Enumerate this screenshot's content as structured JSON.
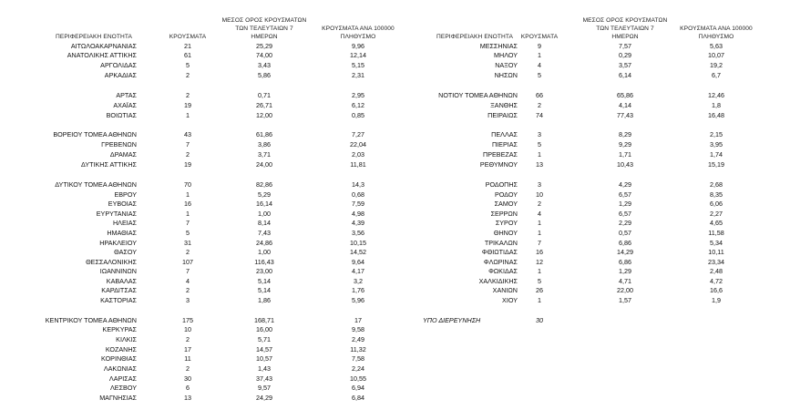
{
  "headers": {
    "region": "ΠΕΡΙΦΕΡΕΙΑΚΗ ΕΝΟΤΗΤΑ",
    "cases": "ΚΡΟΥΣΜΑΤΑ",
    "avg_l1": "ΜΕΣΟΣ ΟΡΟΣ ΚΡΟΥΣΜΑΤΩΝ",
    "avg_l2": "ΤΩΝ ΤΕΛΕΥΤΑΙΩΝ 7",
    "avg_l3": "ΗΜΕΡΩΝ",
    "per_l1": "ΚΡΟΥΣΜΑΤΑ ΑΝΑ 100000",
    "per_l2": "ΠΛΗΘΥΣΜΟ"
  },
  "left_rows": [
    {
      "name": "ΑΙΤΩΛΟΑΚΑΡΝΑΝΙΑΣ",
      "cases": "21",
      "avg": "25,29",
      "per": "9,96"
    },
    {
      "name": "ΑΝΑΤΟΛΙΚΗΣ ΑΤΤΙΚΗΣ",
      "cases": "61",
      "avg": "74,00",
      "per": "12,14"
    },
    {
      "name": "ΑΡΓΟΛΙΔΑΣ",
      "cases": "5",
      "avg": "3,43",
      "per": "5,15"
    },
    {
      "name": "ΑΡΚΑΔΙΑΣ",
      "cases": "2",
      "avg": "5,86",
      "per": "2,31"
    },
    {
      "name": "ΑΡΤΑΣ",
      "cases": "2",
      "avg": "0,71",
      "per": "2,95"
    },
    {
      "name": "ΑΧΑΪΑΣ",
      "cases": "19",
      "avg": "26,71",
      "per": "6,12"
    },
    {
      "name": "ΒΟΙΩΤΙΑΣ",
      "cases": "1",
      "avg": "12,00",
      "per": "0,85"
    },
    {
      "name": "ΒΟΡΕΙΟΥ ΤΟΜΕΑ ΑΘΗΝΩΝ",
      "cases": "43",
      "avg": "61,86",
      "per": "7,27"
    },
    {
      "name": "ΓΡΕΒΕΝΩΝ",
      "cases": "7",
      "avg": "3,86",
      "per": "22,04"
    },
    {
      "name": "ΔΡΑΜΑΣ",
      "cases": "2",
      "avg": "3,71",
      "per": "2,03"
    },
    {
      "name": "ΔΥΤΙΚΗΣ ΑΤΤΙΚΗΣ",
      "cases": "19",
      "avg": "24,00",
      "per": "11,81"
    },
    {
      "name": "ΔΥΤΙΚΟΥ ΤΟΜΕΑ ΑΘΗΝΩΝ",
      "cases": "70",
      "avg": "82,86",
      "per": "14,3"
    },
    {
      "name": "ΕΒΡΟΥ",
      "cases": "1",
      "avg": "5,29",
      "per": "0,68"
    },
    {
      "name": "ΕΥΒΟΙΑΣ",
      "cases": "16",
      "avg": "16,14",
      "per": "7,59"
    },
    {
      "name": "ΕΥΡΥΤΑΝΙΑΣ",
      "cases": "1",
      "avg": "1,00",
      "per": "4,98"
    },
    {
      "name": "ΗΛΕΙΑΣ",
      "cases": "7",
      "avg": "8,14",
      "per": "4,39"
    },
    {
      "name": "ΗΜΑΘΙΑΣ",
      "cases": "5",
      "avg": "7,43",
      "per": "3,56"
    },
    {
      "name": "ΗΡΑΚΛΕΙΟΥ",
      "cases": "31",
      "avg": "24,86",
      "per": "10,15"
    },
    {
      "name": "ΘΑΣΟΥ",
      "cases": "2",
      "avg": "1,00",
      "per": "14,52"
    },
    {
      "name": "ΘΕΣΣΑΛΟΝΙΚΗΣ",
      "cases": "107",
      "avg": "116,43",
      "per": "9,64"
    },
    {
      "name": "ΙΩΑΝΝΙΝΩΝ",
      "cases": "7",
      "avg": "23,00",
      "per": "4,17"
    },
    {
      "name": "ΚΑΒΑΛΑΣ",
      "cases": "4",
      "avg": "5,14",
      "per": "3,2"
    },
    {
      "name": "ΚΑΡΔΙΤΣΑΣ",
      "cases": "2",
      "avg": "5,14",
      "per": "1,76"
    },
    {
      "name": "ΚΑΣΤΟΡΙΑΣ",
      "cases": "3",
      "avg": "1,86",
      "per": "5,96"
    },
    {
      "name": "ΚΕΝΤΡΙΚΟΥ ΤΟΜΕΑ ΑΘΗΝΩΝ",
      "cases": "175",
      "avg": "168,71",
      "per": "17"
    },
    {
      "name": "ΚΕΡΚΥΡΑΣ",
      "cases": "10",
      "avg": "16,00",
      "per": "9,58"
    },
    {
      "name": "ΚΙΛΚΙΣ",
      "cases": "2",
      "avg": "5,71",
      "per": "2,49"
    },
    {
      "name": "ΚΟΖΑΝΗΣ",
      "cases": "17",
      "avg": "14,57",
      "per": "11,32"
    },
    {
      "name": "ΚΟΡΙΝΘΙΑΣ",
      "cases": "11",
      "avg": "10,57",
      "per": "7,58"
    },
    {
      "name": "ΛΑΚΩΝΙΑΣ",
      "cases": "2",
      "avg": "1,43",
      "per": "2,24"
    },
    {
      "name": "ΛΑΡΙΣΑΣ",
      "cases": "30",
      "avg": "37,43",
      "per": "10,55"
    },
    {
      "name": "ΛΕΣΒΟΥ",
      "cases": "6",
      "avg": "9,57",
      "per": "6,94"
    },
    {
      "name": "ΜΑΓΝΗΣΙΑΣ",
      "cases": "13",
      "avg": "24,29",
      "per": "6,84"
    }
  ],
  "right_rows": [
    {
      "name": "ΜΕΣΣΗΝΙΑΣ",
      "cases": "9",
      "avg": "7,57",
      "per": "5,63"
    },
    {
      "name": "ΜΗΛΟΥ",
      "cases": "1",
      "avg": "0,29",
      "per": "10,07"
    },
    {
      "name": "ΝΑΞΟΥ",
      "cases": "4",
      "avg": "3,57",
      "per": "19,2"
    },
    {
      "name": "ΝΗΣΩΝ",
      "cases": "5",
      "avg": "6,14",
      "per": "6,7"
    },
    {
      "name": "ΝΟΤΙΟΥ ΤΟΜΕΑ ΑΘΗΝΩΝ",
      "cases": "66",
      "avg": "65,86",
      "per": "12,46"
    },
    {
      "name": "ΞΑΝΘΗΣ",
      "cases": "2",
      "avg": "4,14",
      "per": "1,8"
    },
    {
      "name": "ΠΕΙΡΑΙΩΣ",
      "cases": "74",
      "avg": "77,43",
      "per": "16,48"
    },
    {
      "name": "ΠΕΛΛΑΣ",
      "cases": "3",
      "avg": "8,29",
      "per": "2,15"
    },
    {
      "name": "ΠΙΕΡΙΑΣ",
      "cases": "5",
      "avg": "9,29",
      "per": "3,95"
    },
    {
      "name": "ΠΡΕΒΕΖΑΣ",
      "cases": "1",
      "avg": "1,71",
      "per": "1,74"
    },
    {
      "name": "ΡΕΘΥΜΝΟΥ",
      "cases": "13",
      "avg": "10,43",
      "per": "15,19"
    },
    {
      "name": "ΡΟΔΟΠΗΣ",
      "cases": "3",
      "avg": "4,29",
      "per": "2,68"
    },
    {
      "name": "ΡΟΔΟΥ",
      "cases": "10",
      "avg": "6,57",
      "per": "8,35"
    },
    {
      "name": "ΣΑΜΟΥ",
      "cases": "2",
      "avg": "1,29",
      "per": "6,06"
    },
    {
      "name": "ΣΕΡΡΩΝ",
      "cases": "4",
      "avg": "6,57",
      "per": "2,27"
    },
    {
      "name": "ΣΥΡΟΥ",
      "cases": "1",
      "avg": "2,29",
      "per": "4,65"
    },
    {
      "name": "ΘΗΝΟΥ",
      "cases": "1",
      "avg": "0,57",
      "per": "11,58"
    },
    {
      "name": "ΤΡΙΚΑΛΩΝ",
      "cases": "7",
      "avg": "6,86",
      "per": "5,34"
    },
    {
      "name": "ΦΘΙΩΤΙΔΑΣ",
      "cases": "16",
      "avg": "14,29",
      "per": "10,11"
    },
    {
      "name": "ΦΛΩΡΙΝΑΣ",
      "cases": "12",
      "avg": "6,86",
      "per": "23,34"
    },
    {
      "name": "ΦΩΚΙΔΑΣ",
      "cases": "1",
      "avg": "1,29",
      "per": "2,48"
    },
    {
      "name": "ΧΑΛΚΙΔΙΚΗΣ",
      "cases": "5",
      "avg": "4,71",
      "per": "4,72"
    },
    {
      "name": "ΧΑΝΙΩΝ",
      "cases": "26",
      "avg": "22,00",
      "per": "16,6"
    },
    {
      "name": "ΧΙΟΥ",
      "cases": "1",
      "avg": "1,57",
      "per": "1,9"
    },
    {
      "name": "ΥΠΟ ΔΙΕΡΕΥΝΗΣΗ",
      "cases": "30",
      "avg": "",
      "per": ""
    }
  ]
}
